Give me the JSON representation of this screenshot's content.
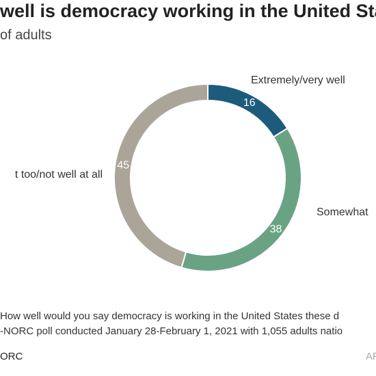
{
  "chart_data": {
    "type": "pie",
    "title": "well is democracy working in the United State",
    "subtitle": "of adults",
    "categories": [
      "Extremely/very well",
      "Somewhat",
      "t too/not well at all"
    ],
    "values": [
      16,
      38,
      45
    ],
    "colors": [
      "#1d5b7d",
      "#6aa383",
      "#aba498"
    ],
    "notes": [
      "How well would you say democracy is working in the United States these d",
      "-NORC poll conducted January 28-February 1, 2021 with 1,055 adults natio"
    ],
    "source_left": "ORC",
    "source_right": "AP"
  }
}
